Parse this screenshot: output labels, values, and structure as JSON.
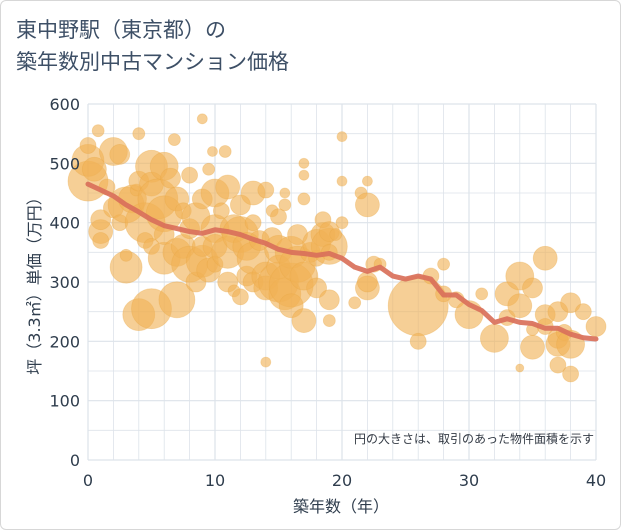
{
  "title": {
    "line1": "東中野駅（東京都）の",
    "line2": "築年数別中古マンション価格"
  },
  "chart_data": {
    "type": "scatter",
    "xlabel": "築年数（年）",
    "ylabel": "坪（3.3㎡）単価（万円）",
    "xlim": [
      0,
      40
    ],
    "ylim": [
      0,
      600
    ],
    "x_ticks": [
      "0",
      "10",
      "20",
      "30",
      "40"
    ],
    "y_ticks": [
      "0",
      "100",
      "200",
      "300",
      "400",
      "500",
      "600"
    ],
    "grid": true,
    "note": "円の大きさは、取引のあった物件面積を示す",
    "colors": {
      "bubble": "#f0b155",
      "trend": "#d9705a",
      "grid": "#dde3ea"
    },
    "trend_line": {
      "x": [
        0,
        1,
        2,
        3,
        4,
        5,
        6,
        7,
        8,
        9,
        10,
        11,
        12,
        13,
        14,
        15,
        16,
        17,
        18,
        19,
        20,
        21,
        22,
        23,
        24,
        25,
        26,
        27,
        28,
        29,
        30,
        31,
        32,
        33,
        34,
        35,
        36,
        37,
        38,
        39,
        40
      ],
      "y": [
        465,
        455,
        445,
        430,
        418,
        405,
        395,
        390,
        385,
        382,
        388,
        385,
        380,
        372,
        365,
        355,
        350,
        348,
        345,
        348,
        340,
        325,
        318,
        325,
        310,
        305,
        310,
        305,
        278,
        278,
        262,
        252,
        232,
        238,
        232,
        230,
        222,
        222,
        212,
        206,
        204
      ]
    },
    "points": [
      {
        "x": 0,
        "y": 470,
        "s": 20
      },
      {
        "x": 0,
        "y": 505,
        "s": 16
      },
      {
        "x": 0,
        "y": 530,
        "s": 8
      },
      {
        "x": 0.5,
        "y": 490,
        "s": 12
      },
      {
        "x": 0.8,
        "y": 555,
        "s": 6
      },
      {
        "x": 1,
        "y": 385,
        "s": 12
      },
      {
        "x": 1,
        "y": 405,
        "s": 10
      },
      {
        "x": 1,
        "y": 370,
        "s": 8
      },
      {
        "x": 1.5,
        "y": 460,
        "s": 8
      },
      {
        "x": 2,
        "y": 520,
        "s": 14
      },
      {
        "x": 2,
        "y": 425,
        "s": 10
      },
      {
        "x": 2.5,
        "y": 515,
        "s": 10
      },
      {
        "x": 2.5,
        "y": 400,
        "s": 8
      },
      {
        "x": 3,
        "y": 430,
        "s": 18
      },
      {
        "x": 3,
        "y": 325,
        "s": 16
      },
      {
        "x": 3,
        "y": 345,
        "s": 6
      },
      {
        "x": 3.5,
        "y": 440,
        "s": 14
      },
      {
        "x": 3.8,
        "y": 455,
        "s": 6
      },
      {
        "x": 4,
        "y": 245,
        "s": 16
      },
      {
        "x": 4,
        "y": 470,
        "s": 10
      },
      {
        "x": 4,
        "y": 550,
        "s": 6
      },
      {
        "x": 4.5,
        "y": 400,
        "s": 20
      },
      {
        "x": 4.5,
        "y": 370,
        "s": 8
      },
      {
        "x": 5,
        "y": 495,
        "s": 16
      },
      {
        "x": 5,
        "y": 255,
        "s": 20
      },
      {
        "x": 5,
        "y": 465,
        "s": 12
      },
      {
        "x": 5,
        "y": 360,
        "s": 8
      },
      {
        "x": 5.5,
        "y": 440,
        "s": 20
      },
      {
        "x": 6,
        "y": 495,
        "s": 14
      },
      {
        "x": 6,
        "y": 415,
        "s": 18
      },
      {
        "x": 6,
        "y": 340,
        "s": 16
      },
      {
        "x": 6,
        "y": 380,
        "s": 10
      },
      {
        "x": 6.5,
        "y": 475,
        "s": 10
      },
      {
        "x": 6.8,
        "y": 540,
        "s": 6
      },
      {
        "x": 7,
        "y": 270,
        "s": 18
      },
      {
        "x": 7,
        "y": 350,
        "s": 14
      },
      {
        "x": 7,
        "y": 440,
        "s": 12
      },
      {
        "x": 7.5,
        "y": 420,
        "s": 8
      },
      {
        "x": 7.5,
        "y": 360,
        "s": 12
      },
      {
        "x": 8,
        "y": 330,
        "s": 18
      },
      {
        "x": 8,
        "y": 390,
        "s": 10
      },
      {
        "x": 8,
        "y": 480,
        "s": 8
      },
      {
        "x": 8.5,
        "y": 300,
        "s": 10
      },
      {
        "x": 8.5,
        "y": 410,
        "s": 14
      },
      {
        "x": 9,
        "y": 335,
        "s": 16
      },
      {
        "x": 9,
        "y": 575,
        "s": 5
      },
      {
        "x": 9,
        "y": 360,
        "s": 10
      },
      {
        "x": 9,
        "y": 440,
        "s": 10
      },
      {
        "x": 9.5,
        "y": 320,
        "s": 12
      },
      {
        "x": 9.5,
        "y": 490,
        "s": 6
      },
      {
        "x": 9.8,
        "y": 520,
        "s": 5
      },
      {
        "x": 10,
        "y": 390,
        "s": 14
      },
      {
        "x": 10,
        "y": 450,
        "s": 14
      },
      {
        "x": 10,
        "y": 360,
        "s": 12
      },
      {
        "x": 10,
        "y": 330,
        "s": 8
      },
      {
        "x": 10.5,
        "y": 420,
        "s": 8
      },
      {
        "x": 10.8,
        "y": 520,
        "s": 6
      },
      {
        "x": 11,
        "y": 460,
        "s": 12
      },
      {
        "x": 11,
        "y": 350,
        "s": 16
      },
      {
        "x": 11,
        "y": 300,
        "s": 10
      },
      {
        "x": 11.5,
        "y": 390,
        "s": 14
      },
      {
        "x": 11.5,
        "y": 285,
        "s": 6
      },
      {
        "x": 12,
        "y": 380,
        "s": 18
      },
      {
        "x": 12,
        "y": 430,
        "s": 10
      },
      {
        "x": 12,
        "y": 275,
        "s": 8
      },
      {
        "x": 12.5,
        "y": 360,
        "s": 14
      },
      {
        "x": 12.5,
        "y": 310,
        "s": 10
      },
      {
        "x": 13,
        "y": 450,
        "s": 12
      },
      {
        "x": 13,
        "y": 340,
        "s": 16
      },
      {
        "x": 13,
        "y": 300,
        "s": 10
      },
      {
        "x": 13,
        "y": 400,
        "s": 8
      },
      {
        "x": 13.5,
        "y": 370,
        "s": 10
      },
      {
        "x": 14,
        "y": 455,
        "s": 8
      },
      {
        "x": 14,
        "y": 310,
        "s": 14
      },
      {
        "x": 14,
        "y": 290,
        "s": 12
      },
      {
        "x": 14,
        "y": 165,
        "s": 5
      },
      {
        "x": 14.5,
        "y": 375,
        "s": 10
      },
      {
        "x": 14.5,
        "y": 420,
        "s": 6
      },
      {
        "x": 15,
        "y": 300,
        "s": 20
      },
      {
        "x": 15,
        "y": 355,
        "s": 14
      },
      {
        "x": 15,
        "y": 325,
        "s": 12
      },
      {
        "x": 15,
        "y": 410,
        "s": 8
      },
      {
        "x": 15.5,
        "y": 280,
        "s": 16
      },
      {
        "x": 15.5,
        "y": 450,
        "s": 5
      },
      {
        "x": 15.5,
        "y": 430,
        "s": 6
      },
      {
        "x": 16,
        "y": 295,
        "s": 22
      },
      {
        "x": 16,
        "y": 350,
        "s": 16
      },
      {
        "x": 16,
        "y": 260,
        "s": 12
      },
      {
        "x": 16.5,
        "y": 330,
        "s": 18
      },
      {
        "x": 16.5,
        "y": 380,
        "s": 10
      },
      {
        "x": 17,
        "y": 235,
        "s": 12
      },
      {
        "x": 17,
        "y": 310,
        "s": 14
      },
      {
        "x": 17,
        "y": 500,
        "s": 5
      },
      {
        "x": 17,
        "y": 480,
        "s": 5
      },
      {
        "x": 17,
        "y": 440,
        "s": 6
      },
      {
        "x": 17.5,
        "y": 350,
        "s": 10
      },
      {
        "x": 18,
        "y": 365,
        "s": 14
      },
      {
        "x": 18,
        "y": 290,
        "s": 10
      },
      {
        "x": 18,
        "y": 340,
        "s": 8
      },
      {
        "x": 18.5,
        "y": 380,
        "s": 12
      },
      {
        "x": 18.5,
        "y": 405,
        "s": 8
      },
      {
        "x": 19,
        "y": 360,
        "s": 18
      },
      {
        "x": 19,
        "y": 385,
        "s": 10
      },
      {
        "x": 19,
        "y": 270,
        "s": 10
      },
      {
        "x": 19,
        "y": 235,
        "s": 6
      },
      {
        "x": 19,
        "y": 350,
        "s": 8
      },
      {
        "x": 19.5,
        "y": 380,
        "s": 6
      },
      {
        "x": 20,
        "y": 545,
        "s": 5
      },
      {
        "x": 20,
        "y": 470,
        "s": 5
      },
      {
        "x": 20,
        "y": 400,
        "s": 6
      },
      {
        "x": 21,
        "y": 265,
        "s": 6
      },
      {
        "x": 21.5,
        "y": 450,
        "s": 6
      },
      {
        "x": 22,
        "y": 430,
        "s": 12
      },
      {
        "x": 22,
        "y": 290,
        "s": 12
      },
      {
        "x": 22,
        "y": 300,
        "s": 10
      },
      {
        "x": 22,
        "y": 470,
        "s": 5
      },
      {
        "x": 22.5,
        "y": 330,
        "s": 8
      },
      {
        "x": 23,
        "y": 330,
        "s": 6
      },
      {
        "x": 26,
        "y": 260,
        "s": 30
      },
      {
        "x": 26,
        "y": 200,
        "s": 8
      },
      {
        "x": 27,
        "y": 310,
        "s": 8
      },
      {
        "x": 28,
        "y": 330,
        "s": 6
      },
      {
        "x": 28,
        "y": 280,
        "s": 8
      },
      {
        "x": 29,
        "y": 270,
        "s": 8
      },
      {
        "x": 30,
        "y": 245,
        "s": 14
      },
      {
        "x": 31,
        "y": 280,
        "s": 6
      },
      {
        "x": 32,
        "y": 205,
        "s": 14
      },
      {
        "x": 33,
        "y": 280,
        "s": 12
      },
      {
        "x": 33,
        "y": 240,
        "s": 8
      },
      {
        "x": 34,
        "y": 310,
        "s": 14
      },
      {
        "x": 34,
        "y": 260,
        "s": 12
      },
      {
        "x": 34,
        "y": 155,
        "s": 4
      },
      {
        "x": 35,
        "y": 190,
        "s": 12
      },
      {
        "x": 35,
        "y": 290,
        "s": 10
      },
      {
        "x": 35,
        "y": 220,
        "s": 6
      },
      {
        "x": 36,
        "y": 340,
        "s": 12
      },
      {
        "x": 36,
        "y": 245,
        "s": 10
      },
      {
        "x": 36,
        "y": 225,
        "s": 8
      },
      {
        "x": 37,
        "y": 250,
        "s": 10
      },
      {
        "x": 37,
        "y": 205,
        "s": 10
      },
      {
        "x": 37,
        "y": 195,
        "s": 12
      },
      {
        "x": 37,
        "y": 160,
        "s": 8
      },
      {
        "x": 37.5,
        "y": 215,
        "s": 8
      },
      {
        "x": 38,
        "y": 195,
        "s": 14
      },
      {
        "x": 38,
        "y": 265,
        "s": 10
      },
      {
        "x": 38,
        "y": 145,
        "s": 8
      },
      {
        "x": 39,
        "y": 250,
        "s": 8
      },
      {
        "x": 40,
        "y": 225,
        "s": 10
      }
    ]
  }
}
